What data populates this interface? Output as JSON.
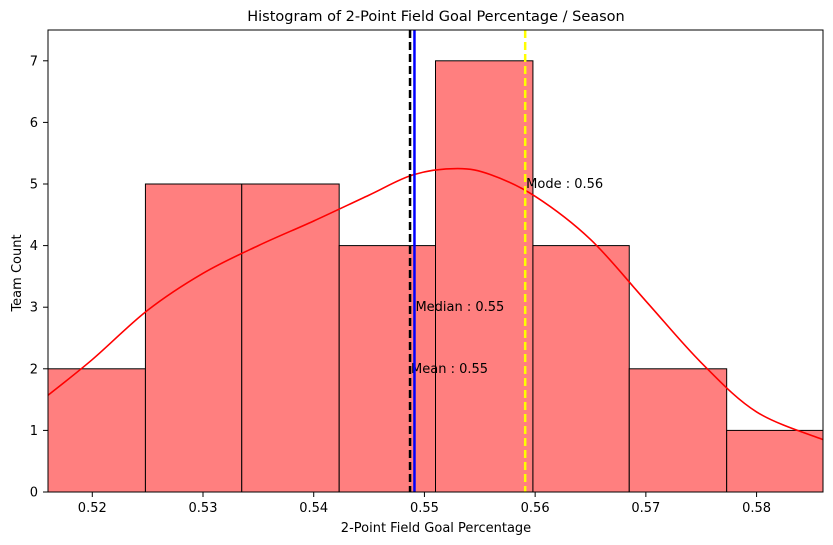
{
  "chart_data": {
    "type": "bar",
    "title": "Histogram of 2-Point Field Goal Percentage / Season",
    "xlabel": "2-Point Field Goal Percentage",
    "ylabel": "Team Count",
    "xlim": [
      0.516,
      0.586
    ],
    "ylim": [
      0,
      7.5
    ],
    "xticks": [
      "0.52",
      "0.53",
      "0.54",
      "0.55",
      "0.56",
      "0.57",
      "0.58"
    ],
    "yticks": [
      "0",
      "1",
      "2",
      "3",
      "4",
      "5",
      "6",
      "7"
    ],
    "bins": [
      {
        "start": 0.516,
        "end": 0.5248,
        "count": 2
      },
      {
        "start": 0.5248,
        "end": 0.5335,
        "count": 5
      },
      {
        "start": 0.5335,
        "end": 0.5423,
        "count": 5
      },
      {
        "start": 0.5423,
        "end": 0.551,
        "count": 4
      },
      {
        "start": 0.551,
        "end": 0.5598,
        "count": 7
      },
      {
        "start": 0.5598,
        "end": 0.5685,
        "count": 4
      },
      {
        "start": 0.5685,
        "end": 0.5773,
        "count": 2
      },
      {
        "start": 0.5773,
        "end": 0.586,
        "count": 1
      }
    ],
    "kde": {
      "x": [
        0.516,
        0.52,
        0.525,
        0.53,
        0.535,
        0.54,
        0.545,
        0.549,
        0.553,
        0.556,
        0.56,
        0.565,
        0.57,
        0.575,
        0.58,
        0.586
      ],
      "y": [
        1.57,
        2.15,
        2.95,
        3.55,
        4.0,
        4.4,
        4.82,
        5.15,
        5.25,
        5.15,
        4.8,
        4.1,
        3.1,
        2.1,
        1.3,
        0.85
      ]
    },
    "reference_lines": [
      {
        "label": "Mean : 0.55",
        "x": 0.5487,
        "color": "#000000",
        "style": "dashed",
        "label_y": 2.0
      },
      {
        "label": "Median : 0.55",
        "x": 0.5491,
        "color": "#0000ff",
        "style": "solid",
        "label_y": 3.0
      },
      {
        "label": "Mode : 0.56",
        "x": 0.5591,
        "color": "#ffff00",
        "style": "dashed",
        "label_y": 5.0
      }
    ],
    "colors": {
      "bar_fill": "#ff7f7f",
      "bar_edge": "#000000",
      "kde": "#ff0000"
    },
    "grid": false
  }
}
